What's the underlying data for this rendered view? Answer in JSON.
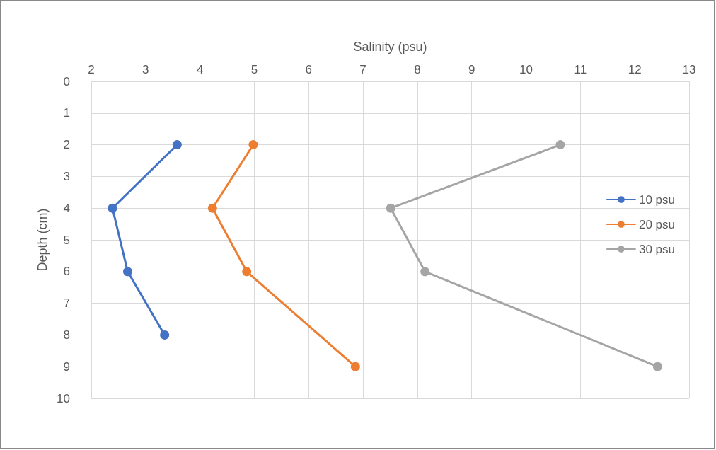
{
  "chart_data": {
    "type": "line",
    "xlabel": "Salinity (psu)",
    "ylabel": "Depth (cm)",
    "xlim": [
      2,
      13
    ],
    "xticks": [
      2,
      3,
      4,
      5,
      6,
      7,
      8,
      9,
      10,
      11,
      12,
      13
    ],
    "ylim": [
      10,
      0
    ],
    "yticks": [
      0,
      1,
      2,
      3,
      4,
      5,
      6,
      7,
      8,
      9,
      10
    ],
    "grid": true,
    "legend": "right",
    "marker": "circle",
    "line_style": "solid",
    "series": [
      {
        "name": "10 psu",
        "color": "#4472c4",
        "x": [
          3.58,
          2.39,
          2.67,
          3.35
        ],
        "values": [
          2,
          4,
          6,
          8
        ]
      },
      {
        "name": "20 psu",
        "color": "#ed7d31",
        "x": [
          4.98,
          4.23,
          4.86,
          6.86
        ],
        "values": [
          2,
          4,
          6,
          9
        ]
      },
      {
        "name": "30 psu",
        "color": "#a5a5a5",
        "x": [
          10.63,
          7.51,
          8.14,
          12.42
        ],
        "values": [
          2,
          4,
          6,
          9
        ]
      }
    ]
  }
}
